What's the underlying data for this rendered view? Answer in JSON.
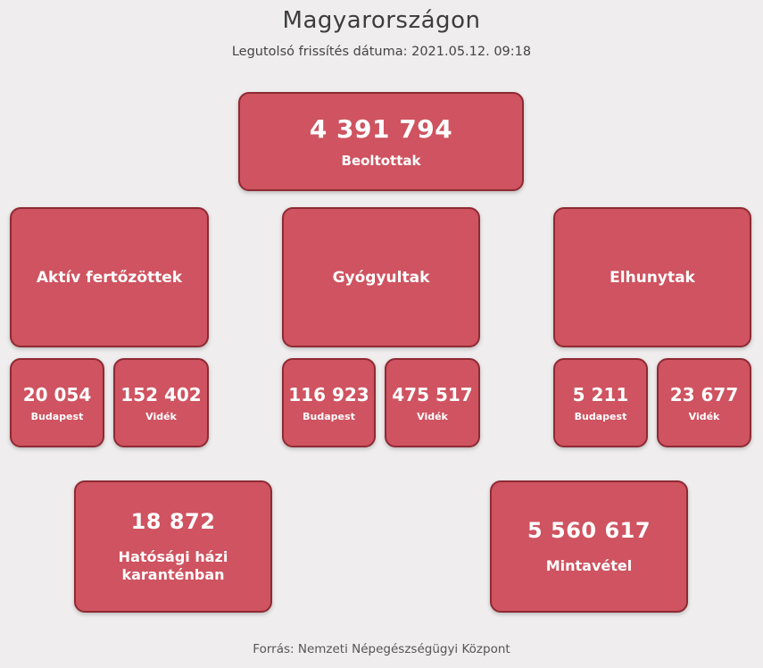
{
  "page": {
    "title": "Magyarországon",
    "subtitle": "Legutolsó frissítés dátuma: 2021.05.12. 09:18",
    "footer": "Forrás: Nemzeti Népegészségügyi Központ"
  },
  "colors": {
    "page_background": "#efeded",
    "card_background": "#cf5360",
    "card_border": "#8e2a34",
    "card_text": "#ffffff",
    "heading_text": "#3d3d3d",
    "footer_text": "#565656"
  },
  "cards": {
    "vaccinated": {
      "value": "4 391 794",
      "label": "Beoltottak"
    },
    "active": {
      "label": "Aktív fertőzöttek",
      "budapest": {
        "value": "20 054",
        "label": "Budapest"
      },
      "videk": {
        "value": "152 402",
        "label": "Vidék"
      }
    },
    "recovered": {
      "label": "Gyógyultak",
      "budapest": {
        "value": "116 923",
        "label": "Budapest"
      },
      "videk": {
        "value": "475 517",
        "label": "Vidék"
      }
    },
    "deceased": {
      "label": "Elhunytak",
      "budapest": {
        "value": "5 211",
        "label": "Budapest"
      },
      "videk": {
        "value": "23 677",
        "label": "Vidék"
      }
    },
    "quarantine": {
      "value": "18 872",
      "label": "Hatósági házi karanténban"
    },
    "samples": {
      "value": "5 560 617",
      "label": "Mintavétel"
    }
  }
}
